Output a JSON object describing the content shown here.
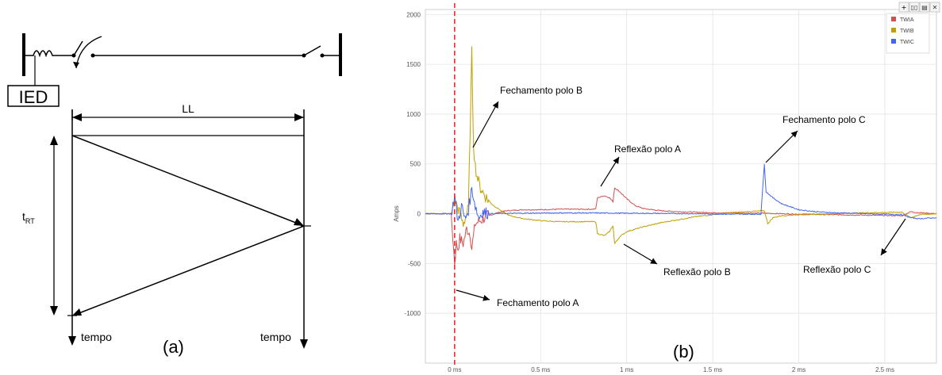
{
  "panel_a": {
    "label": "(a)",
    "ied_label": "IED",
    "line_length_label": "LL",
    "time_label_sub": "RT",
    "time_label_main": "t",
    "left_axis_label": "tempo",
    "right_axis_label": "tempo"
  },
  "panel_b": {
    "label": "(b)"
  },
  "toolbar": {
    "plus_icon": "plus-icon",
    "columns_icon": "columns-icon",
    "menu_icon": "menu-icon",
    "close_icon": "close-icon",
    "plus_glyph": "+",
    "columns_glyph": "▯▯",
    "menu_glyph": "▤",
    "close_glyph": "✕"
  },
  "chart_data": {
    "type": "line",
    "title": "",
    "xlabel": "",
    "ylabel": "Amps",
    "x_unit": "ms",
    "xlim": [
      -0.17,
      2.8
    ],
    "ylim": [
      -1500,
      2050
    ],
    "x_ticks": [
      0,
      0.5,
      1,
      1.5,
      2,
      2.5
    ],
    "x_tick_labels": [
      "0 ms",
      "0.5 ms",
      "1 ms",
      "1.5 ms",
      "2 ms",
      "2.5 ms"
    ],
    "y_ticks": [
      -1000,
      -500,
      0,
      500,
      1000,
      1500,
      2000
    ],
    "y_tick_labels": [
      "-1000",
      "-500",
      "0",
      "500",
      "1000",
      "1500",
      "2000"
    ],
    "grid": true,
    "legend_position": "top-right",
    "marker_line": {
      "x": 0.0,
      "color": "#e03030",
      "style": "dashed"
    },
    "series": [
      {
        "name": "TWIA",
        "color": "#d05050",
        "points": [
          [
            -0.17,
            0
          ],
          [
            -0.02,
            0
          ],
          [
            0.0,
            -500
          ],
          [
            0.01,
            -300
          ],
          [
            0.02,
            -350
          ],
          [
            0.03,
            -250
          ],
          [
            0.05,
            -300
          ],
          [
            0.07,
            -150
          ],
          [
            0.09,
            -200
          ],
          [
            0.1,
            -350
          ],
          [
            0.12,
            -100
          ],
          [
            0.14,
            -80
          ],
          [
            0.16,
            -60
          ],
          [
            0.18,
            -30
          ],
          [
            0.2,
            -20
          ],
          [
            0.25,
            10
          ],
          [
            0.3,
            30
          ],
          [
            0.4,
            40
          ],
          [
            0.5,
            40
          ],
          [
            0.6,
            45
          ],
          [
            0.7,
            45
          ],
          [
            0.8,
            45
          ],
          [
            0.82,
            50
          ],
          [
            0.83,
            160
          ],
          [
            0.87,
            180
          ],
          [
            0.9,
            160
          ],
          [
            0.92,
            120
          ],
          [
            0.93,
            260
          ],
          [
            0.96,
            220
          ],
          [
            1.0,
            150
          ],
          [
            1.05,
            80
          ],
          [
            1.1,
            50
          ],
          [
            1.2,
            30
          ],
          [
            1.3,
            20
          ],
          [
            1.5,
            10
          ],
          [
            1.7,
            5
          ],
          [
            1.8,
            5
          ],
          [
            1.9,
            0
          ],
          [
            2.0,
            -5
          ],
          [
            2.2,
            -10
          ],
          [
            2.4,
            -15
          ],
          [
            2.6,
            -20
          ],
          [
            2.65,
            20
          ],
          [
            2.7,
            10
          ],
          [
            2.8,
            0
          ]
        ]
      },
      {
        "name": "TWIB",
        "color": "#c0a000",
        "points": [
          [
            -0.17,
            0
          ],
          [
            -0.02,
            0
          ],
          [
            0.0,
            150
          ],
          [
            0.02,
            50
          ],
          [
            0.05,
            -100
          ],
          [
            0.08,
            50
          ],
          [
            0.1,
            1620
          ],
          [
            0.11,
            700
          ],
          [
            0.12,
            480
          ],
          [
            0.13,
            380
          ],
          [
            0.15,
            260
          ],
          [
            0.18,
            170
          ],
          [
            0.22,
            90
          ],
          [
            0.27,
            30
          ],
          [
            0.32,
            -20
          ],
          [
            0.4,
            -50
          ],
          [
            0.5,
            -70
          ],
          [
            0.6,
            -80
          ],
          [
            0.7,
            -80
          ],
          [
            0.82,
            -80
          ],
          [
            0.83,
            -200
          ],
          [
            0.87,
            -220
          ],
          [
            0.9,
            -180
          ],
          [
            0.92,
            -120
          ],
          [
            0.93,
            -300
          ],
          [
            0.96,
            -230
          ],
          [
            1.0,
            -180
          ],
          [
            1.1,
            -130
          ],
          [
            1.2,
            -90
          ],
          [
            1.3,
            -60
          ],
          [
            1.4,
            -30
          ],
          [
            1.5,
            -10
          ],
          [
            1.6,
            10
          ],
          [
            1.7,
            20
          ],
          [
            1.8,
            30
          ],
          [
            1.82,
            -100
          ],
          [
            1.85,
            -40
          ],
          [
            1.9,
            -20
          ],
          [
            2.0,
            -10
          ],
          [
            2.2,
            0
          ],
          [
            2.4,
            10
          ],
          [
            2.6,
            15
          ],
          [
            2.65,
            -40
          ],
          [
            2.7,
            -10
          ],
          [
            2.8,
            0
          ]
        ]
      },
      {
        "name": "TWIC",
        "color": "#4466ee",
        "points": [
          [
            -0.17,
            0
          ],
          [
            -0.02,
            0
          ],
          [
            0.0,
            180
          ],
          [
            0.02,
            -80
          ],
          [
            0.04,
            80
          ],
          [
            0.06,
            -60
          ],
          [
            0.08,
            40
          ],
          [
            0.1,
            260
          ],
          [
            0.12,
            80
          ],
          [
            0.14,
            -40
          ],
          [
            0.16,
            20
          ],
          [
            0.2,
            0
          ],
          [
            0.4,
            5
          ],
          [
            0.6,
            8
          ],
          [
            0.8,
            8
          ],
          [
            1.0,
            5
          ],
          [
            1.2,
            3
          ],
          [
            1.4,
            0
          ],
          [
            1.6,
            -5
          ],
          [
            1.78,
            -5
          ],
          [
            1.8,
            500
          ],
          [
            1.81,
            220
          ],
          [
            1.85,
            160
          ],
          [
            1.9,
            100
          ],
          [
            2.0,
            40
          ],
          [
            2.1,
            20
          ],
          [
            2.2,
            10
          ],
          [
            2.4,
            0
          ],
          [
            2.6,
            -10
          ],
          [
            2.65,
            -40
          ],
          [
            2.7,
            -50
          ],
          [
            2.8,
            -40
          ]
        ]
      }
    ],
    "annotations": [
      {
        "text": "Fechamento polo B",
        "x": 0.12,
        "y": 1250
      },
      {
        "text": "Reflexão polo A",
        "x": 0.95,
        "y": 650
      },
      {
        "text": "Fechamento polo C",
        "x": 1.85,
        "y": 900
      },
      {
        "text": "Reflexão polo B",
        "x": 1.05,
        "y": -550
      },
      {
        "text": "Fechamento polo A",
        "x": 0.05,
        "y": -900
      },
      {
        "text": "Reflexão polo C",
        "x": 2.45,
        "y": -520
      }
    ]
  }
}
